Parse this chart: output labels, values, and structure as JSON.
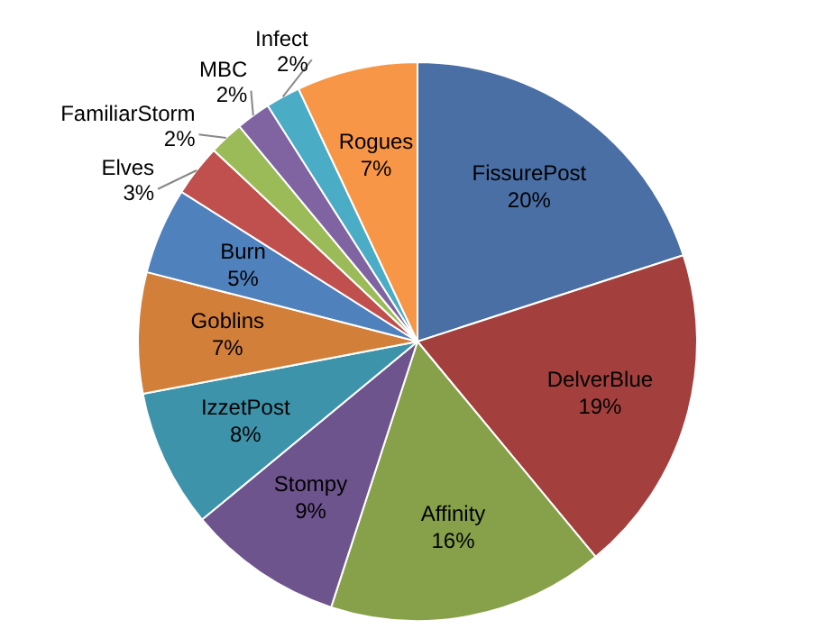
{
  "chart_data": {
    "type": "pie",
    "categories": [
      "FissurePost",
      "DelverBlue",
      "Affinity",
      "Stompy",
      "IzzetPost",
      "Goblins",
      "Burn",
      "Elves",
      "FamiliarStorm",
      "MBC",
      "Infect",
      "Rogues"
    ],
    "values": [
      20,
      19,
      16,
      9,
      8,
      7,
      5,
      3,
      2,
      2,
      2,
      7
    ],
    "value_labels": [
      "20%",
      "19%",
      "16%",
      "9%",
      "8%",
      "7%",
      "5%",
      "3%",
      "2%",
      "2%",
      "2%",
      "7%"
    ],
    "colors": [
      "#4a6fa5",
      "#a3403d",
      "#87a04a",
      "#6e548d",
      "#3d93aa",
      "#d27f3a",
      "#4f81bd",
      "#c0504d",
      "#9bbb59",
      "#8064a2",
      "#4bacc6",
      "#f79646"
    ],
    "legend": false
  }
}
